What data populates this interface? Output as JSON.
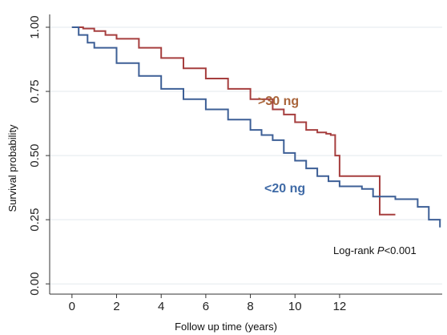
{
  "chart_data": {
    "type": "line",
    "subtype": "kaplan-meier step",
    "xlabel": "Follow up time (years)",
    "ylabel": "Survival probability",
    "xlim": [
      -1,
      16.6
    ],
    "ylim": [
      -0.04,
      1.05
    ],
    "x_ticks": [
      0,
      2,
      4,
      6,
      8,
      10,
      12
    ],
    "x_tick_labels": [
      "0",
      "2",
      "4",
      "6",
      "8",
      "10",
      "12"
    ],
    "y_ticks": [
      0.0,
      0.25,
      0.5,
      0.75,
      1.0
    ],
    "y_tick_labels": [
      "0.00",
      "0.25",
      "0.50",
      "0.75",
      "1.00"
    ],
    "grid": "horizontal",
    "annotation": {
      "prefix": "Log-rank ",
      "italic": "P",
      "suffix": "<0.001"
    },
    "series": [
      {
        "name": ">30 ng",
        "color": "#a63e3e",
        "x": [
          0,
          0.5,
          1,
          1.5,
          2,
          3,
          4,
          5,
          6,
          7,
          8,
          9,
          9.5,
          10,
          10.5,
          11,
          11.4,
          11.6,
          11.8,
          12,
          13,
          13.5,
          13.8,
          14.5
        ],
        "y": [
          1.0,
          0.995,
          0.985,
          0.97,
          0.955,
          0.92,
          0.88,
          0.84,
          0.8,
          0.76,
          0.72,
          0.68,
          0.66,
          0.63,
          0.6,
          0.59,
          0.585,
          0.58,
          0.5,
          0.42,
          0.42,
          0.42,
          0.27,
          0.27
        ]
      },
      {
        "name": "<20 ng",
        "color": "#3d5f96",
        "x": [
          0,
          0.3,
          0.7,
          1,
          2,
          3,
          4,
          5,
          6,
          7,
          8,
          8.5,
          9,
          9.5,
          10,
          10.5,
          11,
          11.5,
          12,
          13,
          13.5,
          14,
          14.5,
          15,
          15.5,
          16,
          16.5
        ],
        "y": [
          1.0,
          0.97,
          0.94,
          0.92,
          0.86,
          0.81,
          0.76,
          0.72,
          0.68,
          0.64,
          0.6,
          0.58,
          0.56,
          0.51,
          0.48,
          0.45,
          0.42,
          0.4,
          0.38,
          0.37,
          0.34,
          0.34,
          0.33,
          0.33,
          0.3,
          0.25,
          0.22
        ]
      }
    ]
  }
}
